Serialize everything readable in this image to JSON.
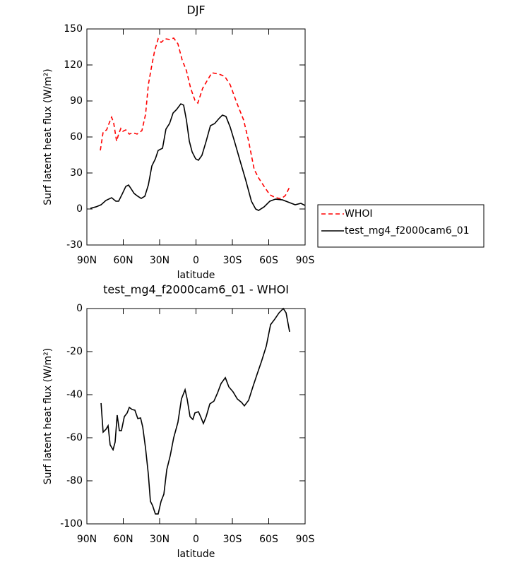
{
  "chart_data": [
    {
      "type": "line",
      "title": "DJF",
      "xlabel": "latitude",
      "ylabel": "Surf latent heat flux (W/m²)",
      "xlim": [
        90,
        -90
      ],
      "xticks": [
        {
          "value": 90,
          "label": "90N"
        },
        {
          "value": 60,
          "label": "60N"
        },
        {
          "value": 30,
          "label": "30N"
        },
        0,
        {
          "value": -30,
          "label": "30S"
        },
        {
          "value": -60,
          "label": "60S"
        },
        {
          "value": -90,
          "label": "90S"
        }
      ],
      "ylim": [
        -30,
        150
      ],
      "yticks": [
        -30,
        0,
        30,
        60,
        90,
        120,
        150
      ],
      "legend": "right",
      "series": [
        {
          "name": "WHOI",
          "color": "#ff0000",
          "line_style": "dashed",
          "x": [
            78.9,
            76.6,
            73.7,
            72,
            69.6,
            67.9,
            65.5,
            63.8,
            62,
            60.3,
            57.9,
            55,
            52.1,
            48.6,
            44.6,
            41.6,
            39.3,
            36.4,
            34.1,
            31.2,
            28.8,
            25.3,
            21.8,
            18.4,
            14.9,
            11.4,
            7.9,
            4.4,
            0.9,
            -1.5,
            -5.5,
            -9.6,
            -13.1,
            -18.9,
            -23.6,
            -28.2,
            -33.5,
            -39.3,
            -43.4,
            -48,
            -51.6,
            -56.2,
            -60.9,
            -65.5,
            -70.2,
            -73.7,
            -77.2
          ],
          "values": [
            48.8,
            64.1,
            65.9,
            70.6,
            76.5,
            71.8,
            56.5,
            62.4,
            67.1,
            64.7,
            65.9,
            62.4,
            63.5,
            62.4,
            65.3,
            78.8,
            103.5,
            120,
            131.8,
            141.8,
            138.8,
            141.8,
            141.2,
            142.4,
            137.6,
            124.1,
            115.3,
            100.6,
            90.6,
            88.2,
            100.6,
            107.6,
            113.5,
            112.4,
            110.6,
            103.5,
            88.8,
            74.1,
            56.5,
            33,
            25.9,
            18.8,
            11.8,
            9.5,
            8.5,
            11.2,
            18.2
          ]
        },
        {
          "name": "test_mg4_f2000cam6_01",
          "color": "#000000",
          "line_style": "solid",
          "x": [
            87.1,
            82.4,
            78.3,
            74.3,
            69.6,
            66.1,
            63.8,
            60.9,
            57.9,
            55.6,
            53.3,
            51,
            48,
            45.2,
            42.2,
            39.3,
            36.4,
            33.5,
            31.2,
            27.6,
            24.8,
            21.8,
            18.9,
            16,
            12.5,
            10.2,
            7.9,
            5.5,
            3.2,
            0.3,
            -2,
            -4.9,
            -8.4,
            -11.9,
            -15.4,
            -18.9,
            -21.8,
            -24.7,
            -28.2,
            -31.7,
            -36.4,
            -41,
            -45.7,
            -49.2,
            -51.6,
            -56.2,
            -60.9,
            -65.5,
            -71.3,
            -77.2,
            -81.8,
            -86.5,
            -90
          ],
          "values": [
            0.6,
            1.8,
            3.5,
            7.1,
            9.4,
            6.5,
            6.5,
            12.4,
            18.8,
            20,
            16.5,
            12.9,
            10.6,
            8.8,
            10.6,
            20,
            35.9,
            41.8,
            48.8,
            50.6,
            66.5,
            71.2,
            80,
            82.9,
            87.6,
            86.5,
            74.1,
            56.5,
            47.6,
            41.8,
            40.6,
            44.7,
            56.5,
            69.4,
            71.2,
            75.3,
            78.2,
            77.1,
            68.2,
            56.5,
            40,
            24.1,
            6.5,
            0,
            -1.2,
            1.8,
            6.5,
            8.2,
            7.6,
            5.3,
            3.5,
            4.7,
            2.9
          ]
        }
      ]
    },
    {
      "type": "line",
      "title": "test_mg4_f2000cam6_01 - WHOI",
      "xlabel": "latitude",
      "ylabel": "Surf latent heat flux (W/m²)",
      "xlim": [
        90,
        -90
      ],
      "xticks": [
        {
          "value": 90,
          "label": "90N"
        },
        {
          "value": 60,
          "label": "60N"
        },
        {
          "value": 30,
          "label": "30N"
        },
        0,
        {
          "value": -30,
          "label": "30S"
        },
        {
          "value": -60,
          "label": "60S"
        },
        {
          "value": -90,
          "label": "90S"
        }
      ],
      "ylim": [
        -100,
        0
      ],
      "yticks": [
        -100,
        -80,
        -60,
        -40,
        -20,
        0
      ],
      "series": [
        {
          "color": "#000000",
          "line_style": "solid",
          "x": [
            78.3,
            76.6,
            74.3,
            72.5,
            70.8,
            68.4,
            66.7,
            65,
            63.2,
            61.5,
            59.1,
            56.8,
            55,
            52.7,
            50.4,
            48,
            45.7,
            43.9,
            41.6,
            39.3,
            37.6,
            35.8,
            33.5,
            31.2,
            28.8,
            26.5,
            24.1,
            21.2,
            18.4,
            14.9,
            12,
            9,
            7.3,
            4.9,
            2.6,
            0.9,
            -2,
            -3.8,
            -6.1,
            -8.4,
            -11.4,
            -14.8,
            -17.7,
            -20.7,
            -24.2,
            -27.1,
            -30.6,
            -34.1,
            -37.6,
            -39.9,
            -43.4,
            -46.9,
            -50.4,
            -54,
            -58,
            -61.5,
            -65,
            -68.5,
            -72,
            -74.3,
            -77.2
          ],
          "values": [
            -43.9,
            -57.4,
            -56.1,
            -54.4,
            -63.3,
            -65.6,
            -62,
            -49.5,
            -56.7,
            -56.7,
            -50.2,
            -48.5,
            -45.9,
            -46.9,
            -47.2,
            -51.1,
            -50.8,
            -55.1,
            -64.9,
            -77,
            -89.5,
            -91.5,
            -95.4,
            -95.4,
            -89.5,
            -86.2,
            -74.8,
            -68.2,
            -60,
            -52.8,
            -42,
            -37.7,
            -42,
            -50.2,
            -51.5,
            -48.5,
            -47.9,
            -50.2,
            -53.4,
            -50.2,
            -44.3,
            -43,
            -39.3,
            -34.8,
            -32.1,
            -36.4,
            -38.7,
            -42,
            -43.6,
            -45.2,
            -42.6,
            -36.4,
            -30.5,
            -24.6,
            -17.4,
            -7.5,
            -4.9,
            -2,
            0,
            -2,
            -10.8
          ]
        }
      ]
    }
  ]
}
